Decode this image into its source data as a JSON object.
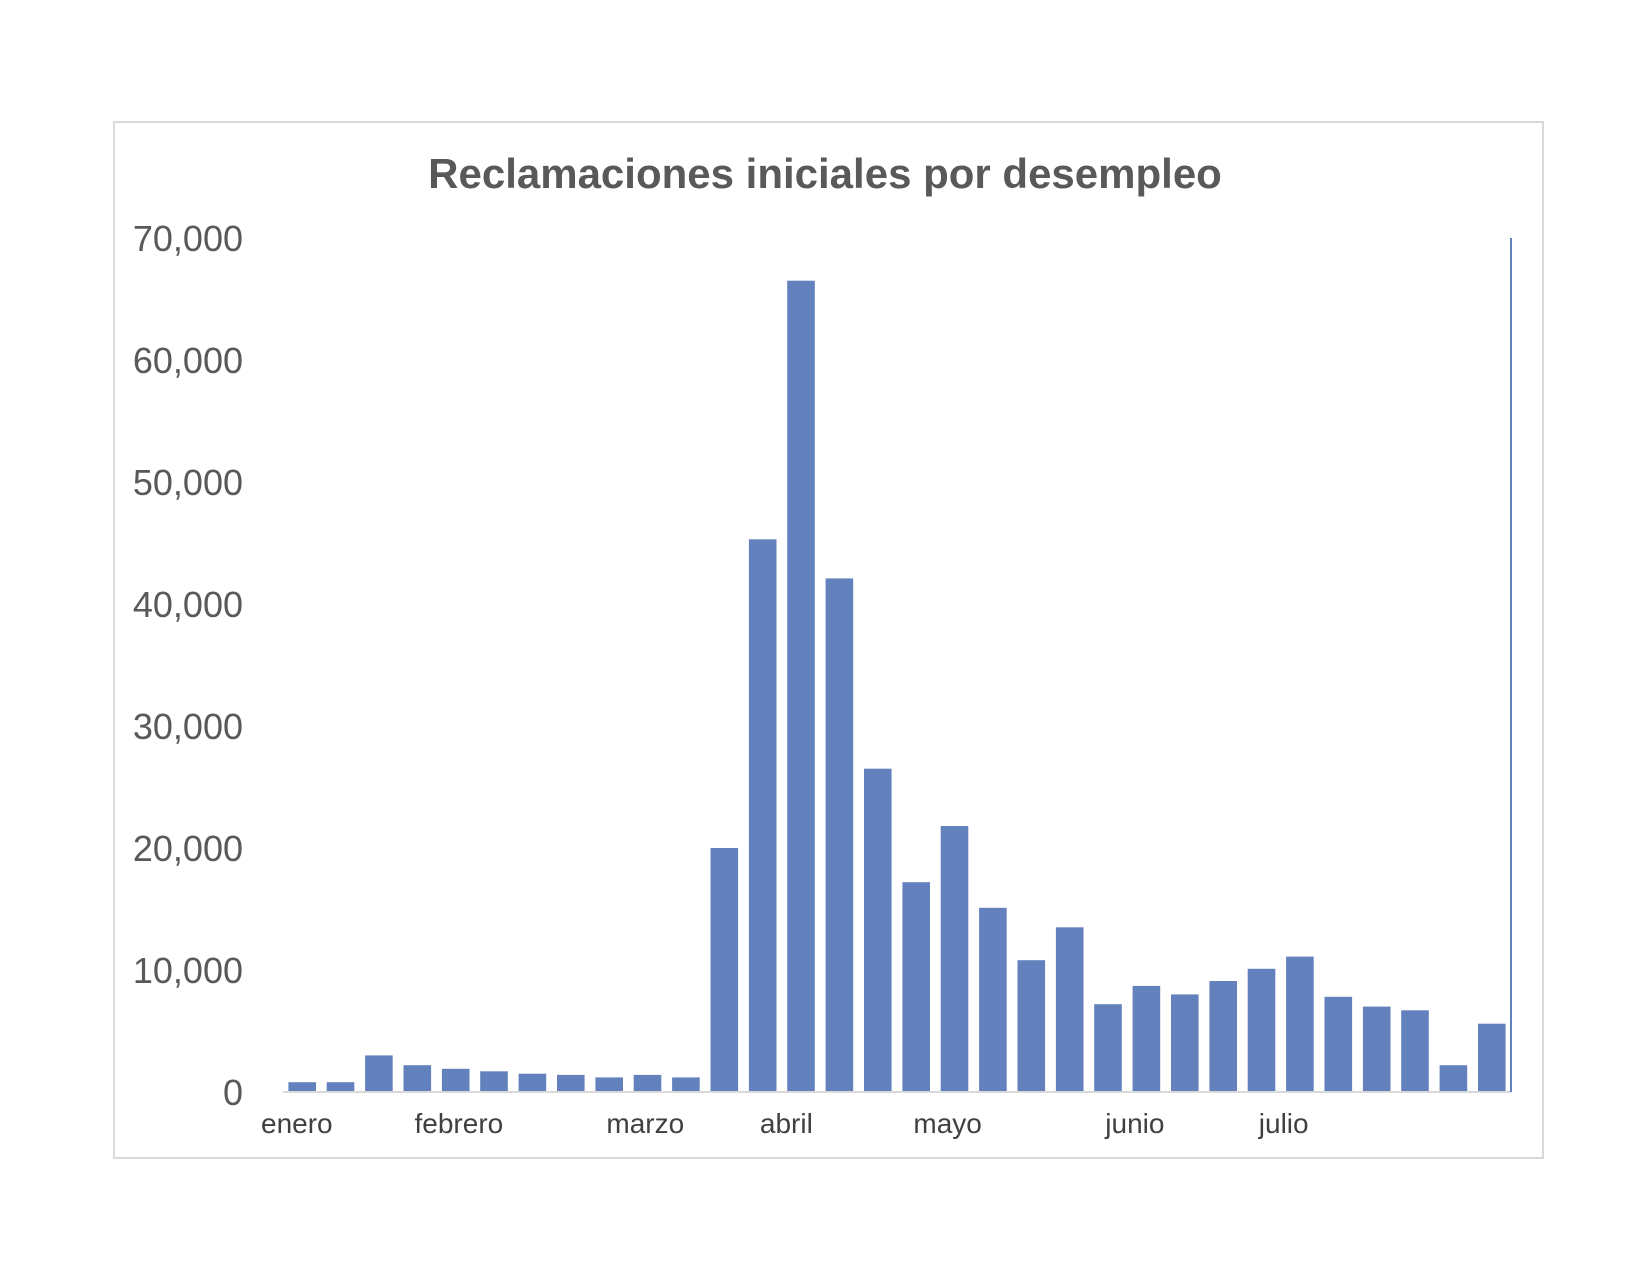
{
  "chart_data": {
    "type": "bar",
    "title": "Reclamaciones iniciales por desempleo",
    "xlabel": "",
    "ylabel": "",
    "ylim": [
      0,
      70000
    ],
    "yticks": [
      "0",
      "10,000",
      "20,000",
      "30,000",
      "40,000",
      "50,000",
      "60,000",
      "70,000"
    ],
    "month_labels": [
      {
        "label": "enero",
        "bar_index": 0
      },
      {
        "label": "febrero",
        "bar_index": 4
      },
      {
        "label": "marzo",
        "bar_index": 9
      },
      {
        "label": "abril",
        "bar_index": 13
      },
      {
        "label": "mayo",
        "bar_index": 17
      },
      {
        "label": "junio",
        "bar_index": 22
      },
      {
        "label": "julio",
        "bar_index": 26
      }
    ],
    "values": [
      800,
      800,
      3000,
      2200,
      1900,
      1700,
      1500,
      1400,
      1200,
      1400,
      1200,
      20000,
      45300,
      66500,
      42100,
      26500,
      17200,
      21800,
      15100,
      10800,
      13500,
      7200,
      8700,
      8000,
      9100,
      10100,
      11100,
      7800,
      7000,
      6700,
      2200,
      5600
    ],
    "bar_color": "#6381BD",
    "grid": false
  }
}
